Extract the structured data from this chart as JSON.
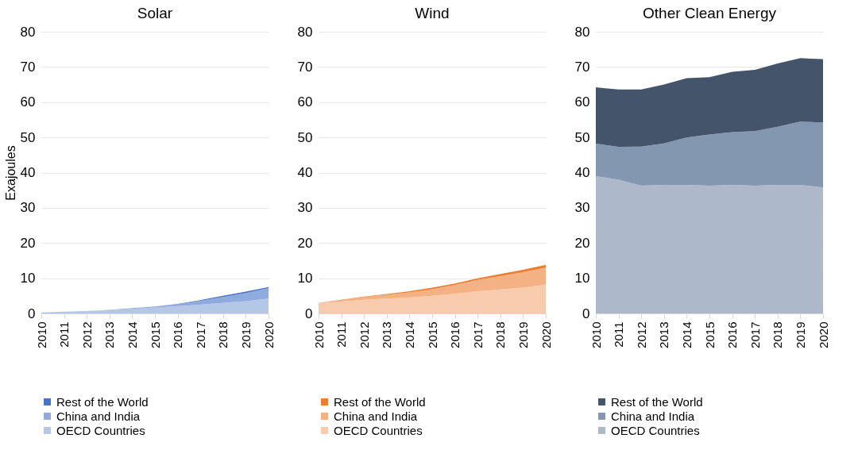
{
  "chart_data": [
    {
      "type": "area",
      "title": "Solar",
      "ylabel": "Exajoules",
      "stacked": true,
      "categories": [
        "2010",
        "2011",
        "2012",
        "2013",
        "2014",
        "2015",
        "2016",
        "2017",
        "2018",
        "2019",
        "2020"
      ],
      "ylim": [
        0,
        80
      ],
      "yticks": [
        0,
        10,
        20,
        30,
        40,
        50,
        60,
        70,
        80
      ],
      "grid": "y",
      "legend": "bottom",
      "series": [
        {
          "name": "OECD Countries",
          "color": "#b4c7e7",
          "values": [
            0.3,
            0.5,
            0.7,
            0.9,
            1.3,
            1.7,
            2.1,
            2.5,
            3.0,
            3.5,
            4.2
          ]
        },
        {
          "name": "China and India",
          "color": "#8faadc",
          "values": [
            0,
            0,
            0,
            0.1,
            0.2,
            0.3,
            0.5,
            1.1,
            1.7,
            2.3,
            3.0
          ]
        },
        {
          "name": "Rest of the World",
          "color": "#4472c4",
          "values": [
            0,
            0,
            0,
            0,
            0,
            0,
            0.1,
            0.2,
            0.3,
            0.4,
            0.3
          ]
        }
      ]
    },
    {
      "type": "area",
      "title": "Wind",
      "stacked": true,
      "categories": [
        "2010",
        "2011",
        "2012",
        "2013",
        "2014",
        "2015",
        "2016",
        "2017",
        "2018",
        "2019",
        "2020"
      ],
      "ylim": [
        0,
        80
      ],
      "yticks": [
        0,
        10,
        20,
        30,
        40,
        50,
        60,
        70,
        80
      ],
      "grid": "y",
      "legend": "bottom",
      "series": [
        {
          "name": "OECD Countries",
          "color": "#f8cbad",
          "values": [
            2.9,
            3.4,
            3.9,
            4.2,
            4.5,
            5.0,
            5.6,
            6.3,
            6.8,
            7.3,
            8.2
          ]
        },
        {
          "name": "China and India",
          "color": "#f4b183",
          "values": [
            0.1,
            0.4,
            0.8,
            1.1,
            1.5,
            1.9,
            2.5,
            3.2,
            3.8,
            4.4,
            4.8
          ]
        },
        {
          "name": "Rest of the World",
          "color": "#ed7d31",
          "values": [
            0,
            0.1,
            0.1,
            0.2,
            0.3,
            0.4,
            0.4,
            0.5,
            0.6,
            0.7,
            0.8
          ]
        }
      ]
    },
    {
      "type": "area",
      "title": "Other Clean Energy",
      "stacked": true,
      "categories": [
        "2010",
        "2011",
        "2012",
        "2013",
        "2014",
        "2015",
        "2016",
        "2017",
        "2018",
        "2019",
        "2020"
      ],
      "ylim": [
        0,
        80
      ],
      "yticks": [
        0,
        10,
        20,
        30,
        40,
        50,
        60,
        70,
        80
      ],
      "grid": "y",
      "legend": "bottom",
      "series": [
        {
          "name": "OECD Countries",
          "color": "#adb9ca",
          "values": [
            39.0,
            38.0,
            36.3,
            36.5,
            36.5,
            36.3,
            36.5,
            36.3,
            36.5,
            36.5,
            35.8
          ]
        },
        {
          "name": "China and India",
          "color": "#8497b0",
          "values": [
            9.2,
            9.3,
            11.1,
            11.8,
            13.5,
            14.5,
            15.0,
            15.5,
            16.5,
            18.0,
            18.4
          ]
        },
        {
          "name": "Rest of the World",
          "color": "#44546a",
          "values": [
            16.0,
            16.3,
            16.2,
            16.7,
            16.8,
            16.3,
            17.1,
            17.4,
            18.0,
            18.0,
            18.0
          ]
        }
      ]
    }
  ]
}
